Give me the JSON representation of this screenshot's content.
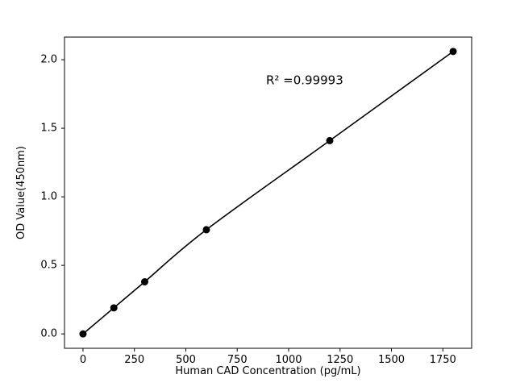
{
  "chart_data": {
    "type": "scatter",
    "title": "",
    "xlabel": "Human CAD Concentration (pg/mL)",
    "ylabel": "OD Value(450nm)",
    "x": [
      0,
      150,
      300,
      600,
      1200,
      1800
    ],
    "y": [
      0.0,
      0.19,
      0.38,
      0.76,
      1.41,
      2.06
    ],
    "x_ticks": [
      0,
      250,
      500,
      750,
      1000,
      1250,
      1500,
      1750
    ],
    "y_ticks": [
      0.0,
      0.5,
      1.0,
      1.5,
      2.0
    ],
    "xlim": [
      -90,
      1890
    ],
    "ylim": [
      -0.105,
      2.165
    ],
    "annotation": {
      "text": "R² =0.99993",
      "x": 890,
      "y": 1.85
    },
    "line_color": "#000000",
    "marker_color": "#000000",
    "background_color": "#ffffff",
    "grid": false,
    "legend": null
  }
}
